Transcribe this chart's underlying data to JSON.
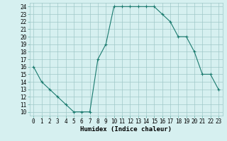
{
  "xlabel": "Humidex (Indice chaleur)",
  "ylabel": "",
  "x": [
    0,
    1,
    2,
    3,
    4,
    5,
    6,
    7,
    8,
    9,
    10,
    11,
    12,
    13,
    14,
    15,
    16,
    17,
    18,
    19,
    20,
    21,
    22,
    23
  ],
  "y": [
    16,
    14,
    13,
    12,
    11,
    10,
    10,
    10,
    17,
    19,
    24,
    24,
    24,
    24,
    24,
    24,
    23,
    22,
    20,
    20,
    18,
    15,
    15,
    13
  ],
  "line_color": "#1a7a6e",
  "marker": "+",
  "marker_size": 3,
  "bg_color": "#d6f0f0",
  "grid_color": "#a0c8c8",
  "ylim": [
    9.5,
    24.5
  ],
  "xlim": [
    -0.5,
    23.5
  ],
  "yticks": [
    10,
    11,
    12,
    13,
    14,
    15,
    16,
    17,
    18,
    19,
    20,
    21,
    22,
    23,
    24
  ],
  "xticks": [
    0,
    1,
    2,
    3,
    4,
    5,
    6,
    7,
    8,
    9,
    10,
    11,
    12,
    13,
    14,
    15,
    16,
    17,
    18,
    19,
    20,
    21,
    22,
    23
  ],
  "title_fontsize": 7,
  "label_fontsize": 6.5,
  "tick_fontsize": 5.5
}
